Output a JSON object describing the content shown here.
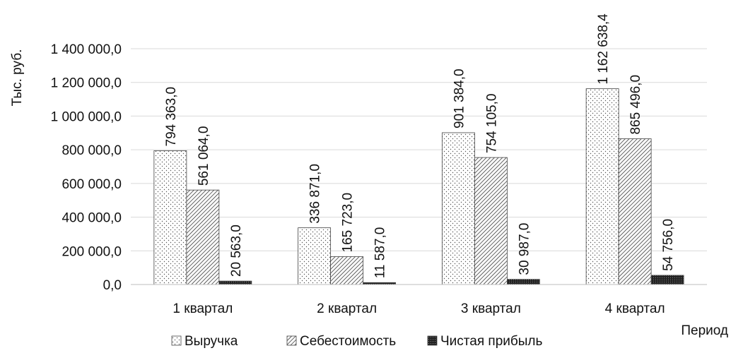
{
  "chart_data": {
    "type": "bar",
    "title": "",
    "ylabel": "Тыс. руб.",
    "xlabel": "Период",
    "categories": [
      "1 квартал",
      "2 квартал",
      "3 квартал",
      "4 квартал"
    ],
    "series": [
      {
        "name": "Выручка",
        "values": [
          794363.0,
          336871.0,
          901384.0,
          1162638.4
        ],
        "labels": [
          "794 363,0",
          "336 871,0",
          "901 384,0",
          "1 162 638,4"
        ],
        "pattern": "dots",
        "color": "#ffffff"
      },
      {
        "name": "Себестоимость",
        "values": [
          561064.0,
          165723.0,
          754105.0,
          865496.0
        ],
        "labels": [
          "561 064,0",
          "165 723,0",
          "754 105,0",
          "865 496,0"
        ],
        "pattern": "diagonal-hatch",
        "color": "#ffffff"
      },
      {
        "name": "Чистая прибыль",
        "values": [
          20563.0,
          11587.0,
          30987.0,
          54756.0
        ],
        "labels": [
          "20 563,0",
          "11 587,0",
          "30 987,0",
          "54 756,0"
        ],
        "pattern": "dense-dark",
        "color": "#222222"
      }
    ],
    "ylim": [
      0,
      1400000
    ],
    "yticks": [
      0,
      200000,
      400000,
      600000,
      800000,
      1000000,
      1200000,
      1400000
    ],
    "ytick_labels": [
      "0,0",
      "200 000,0",
      "400 000,0",
      "600 000,0",
      "800 000,0",
      "1 000 000,0",
      "1 200 000,0",
      "1 400 000,0"
    ],
    "grid": true,
    "legend_position": "bottom"
  }
}
